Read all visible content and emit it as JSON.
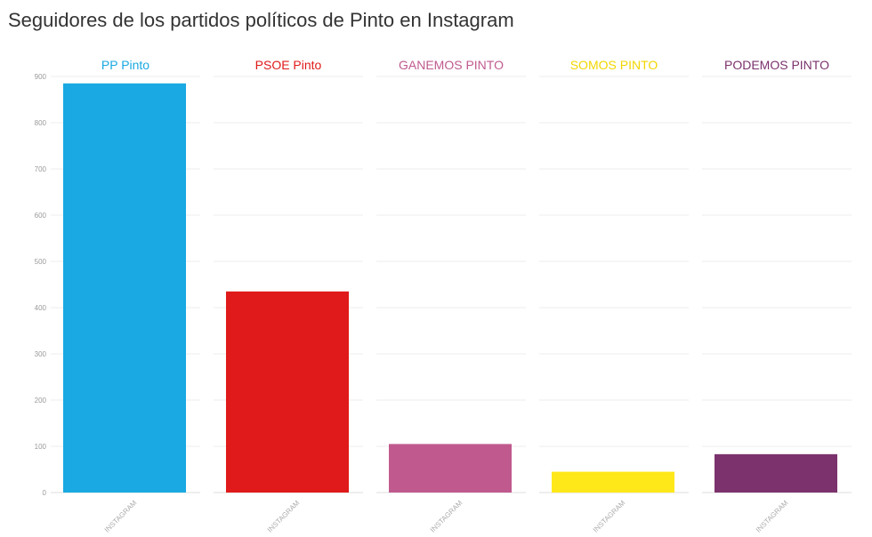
{
  "title": "Seguidores de los partidos políticos de Pinto en Instagram",
  "chart_data": {
    "type": "bar",
    "layout": "small-multiples",
    "title": "Seguidores de los partidos políticos de Pinto en Instagram",
    "ylim": [
      0,
      900
    ],
    "yticks": [
      0,
      100,
      200,
      300,
      400,
      500,
      600,
      700,
      800,
      900
    ],
    "grid": true,
    "categories": [
      "INSTAGRAM"
    ],
    "series": [
      {
        "name": "PP Pinto",
        "values": [
          885
        ],
        "color": "#1aa9e2"
      },
      {
        "name": "PSOE Pinto",
        "values": [
          435
        ],
        "color": "#e01a1a"
      },
      {
        "name": "GANEMOS PINTO",
        "values": [
          105
        ],
        "color": "#c05a8e"
      },
      {
        "name": "SOMOS PINTO",
        "values": [
          45
        ],
        "color": "#ffe81a"
      },
      {
        "name": "PODEMOS PINTO",
        "values": [
          83
        ],
        "color": "#7b326d"
      }
    ]
  }
}
